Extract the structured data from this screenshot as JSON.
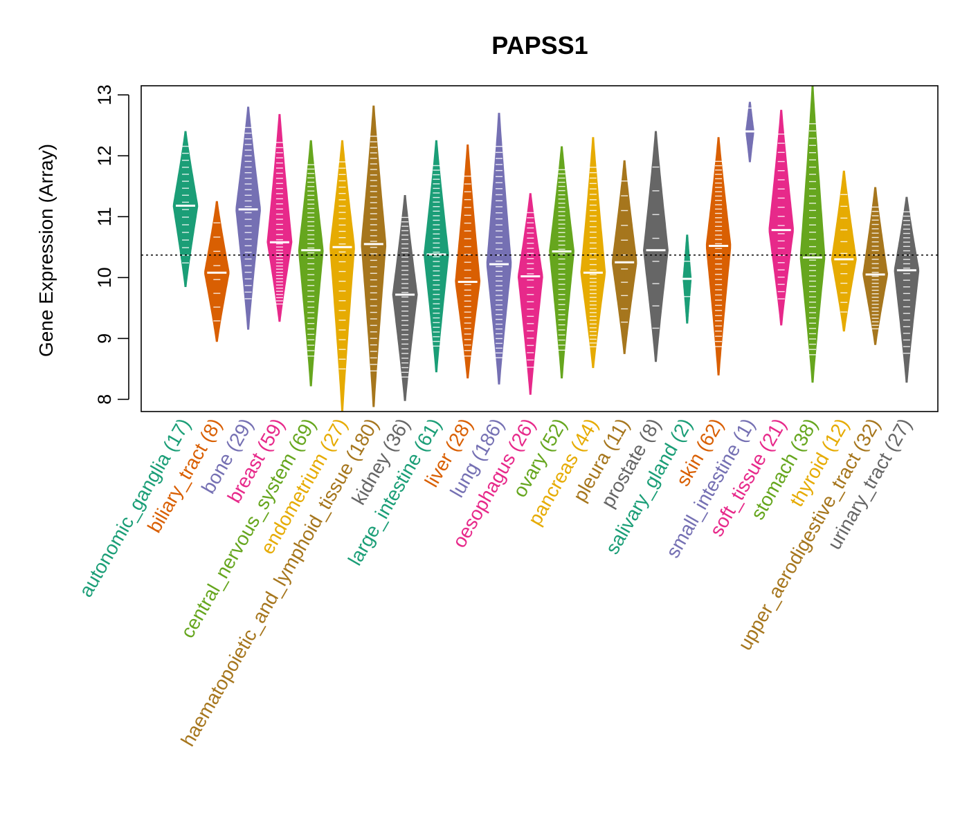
{
  "chart_data": {
    "type": "violin",
    "title": "PAPSS1",
    "ylabel": "Gene Expression (Array)",
    "xlabel": "",
    "ylim": [
      7.8,
      13.15
    ],
    "yticks": [
      8,
      9,
      10,
      11,
      12,
      13
    ],
    "reference_line": 10.37,
    "categories": [
      {
        "name": "autonomic_ganglia",
        "n": 17,
        "label": "autonomic_ganglia (17)",
        "color": "#1B9E77",
        "min": 9.85,
        "max": 12.4,
        "median": 11.18
      },
      {
        "name": "biliary_tract",
        "n": 8,
        "label": "biliary_tract (8)",
        "color": "#D95F02",
        "min": 8.95,
        "max": 11.25,
        "median": 10.08
      },
      {
        "name": "bone",
        "n": 29,
        "label": "bone (29)",
        "color": "#7570B3",
        "min": 9.15,
        "max": 12.8,
        "median": 11.12
      },
      {
        "name": "breast",
        "n": 59,
        "label": "breast (59)",
        "color": "#E7298A",
        "min": 9.28,
        "max": 12.68,
        "median": 10.58
      },
      {
        "name": "central_nervous_system",
        "n": 69,
        "label": "central_nervous_system (69)",
        "color": "#66A61E",
        "min": 8.22,
        "max": 12.25,
        "median": 10.45
      },
      {
        "name": "endometrium",
        "n": 27,
        "label": "endometrium (27)",
        "color": "#E6AB02",
        "min": 7.8,
        "max": 12.25,
        "median": 10.5
      },
      {
        "name": "haematopoietic_and_lymphoid_tissue",
        "n": 180,
        "label": "haematopoietic_and_lymphoid_tissue (180)",
        "color": "#A6761D",
        "min": 7.88,
        "max": 12.82,
        "median": 10.55
      },
      {
        "name": "kidney",
        "n": 36,
        "label": "kidney (36)",
        "color": "#666666",
        "min": 7.98,
        "max": 11.35,
        "median": 9.72
      },
      {
        "name": "large_intestine",
        "n": 61,
        "label": "large_intestine (61)",
        "color": "#1B9E77",
        "min": 8.45,
        "max": 12.25,
        "median": 10.38
      },
      {
        "name": "liver",
        "n": 28,
        "label": "liver (28)",
        "color": "#D95F02",
        "min": 8.35,
        "max": 12.18,
        "median": 9.93
      },
      {
        "name": "lung",
        "n": 186,
        "label": "lung (186)",
        "color": "#7570B3",
        "min": 8.25,
        "max": 12.7,
        "median": 10.22
      },
      {
        "name": "oesophagus",
        "n": 26,
        "label": "oesophagus (26)",
        "color": "#E7298A",
        "min": 8.08,
        "max": 11.38,
        "median": 10.02
      },
      {
        "name": "ovary",
        "n": 52,
        "label": "ovary (52)",
        "color": "#66A61E",
        "min": 8.35,
        "max": 12.15,
        "median": 10.43
      },
      {
        "name": "pancreas",
        "n": 44,
        "label": "pancreas (44)",
        "color": "#E6AB02",
        "min": 8.52,
        "max": 12.3,
        "median": 10.08
      },
      {
        "name": "pleura",
        "n": 11,
        "label": "pleura (11)",
        "color": "#A6761D",
        "min": 8.75,
        "max": 11.92,
        "median": 10.25
      },
      {
        "name": "prostate",
        "n": 8,
        "label": "prostate (8)",
        "color": "#666666",
        "min": 8.62,
        "max": 12.4,
        "median": 10.45
      },
      {
        "name": "salivary_gland",
        "n": 2,
        "label": "salivary_gland (2)",
        "color": "#1B9E77",
        "min": 9.25,
        "max": 10.7,
        "median": 9.98
      },
      {
        "name": "skin",
        "n": 62,
        "label": "skin (62)",
        "color": "#D95F02",
        "min": 8.4,
        "max": 12.3,
        "median": 10.52
      },
      {
        "name": "small_intestine",
        "n": 1,
        "label": "small_intestine (1)",
        "color": "#7570B3",
        "min": 11.9,
        "max": 12.88,
        "median": 12.4
      },
      {
        "name": "soft_tissue",
        "n": 21,
        "label": "soft_tissue (21)",
        "color": "#E7298A",
        "min": 9.22,
        "max": 12.75,
        "median": 10.78
      },
      {
        "name": "stomach",
        "n": 38,
        "label": "stomach (38)",
        "color": "#66A61E",
        "min": 8.28,
        "max": 13.15,
        "median": 10.33
      },
      {
        "name": "thyroid",
        "n": 12,
        "label": "thyroid (12)",
        "color": "#E6AB02",
        "min": 9.12,
        "max": 11.75,
        "median": 10.3
      },
      {
        "name": "upper_aerodigestive_tract",
        "n": 32,
        "label": "upper_aerodigestive_tract (32)",
        "color": "#A6761D",
        "min": 8.9,
        "max": 11.48,
        "median": 10.05
      },
      {
        "name": "urinary_tract",
        "n": 27,
        "label": "urinary_tract (27)",
        "color": "#666666",
        "min": 8.28,
        "max": 11.32,
        "median": 10.12
      }
    ]
  }
}
